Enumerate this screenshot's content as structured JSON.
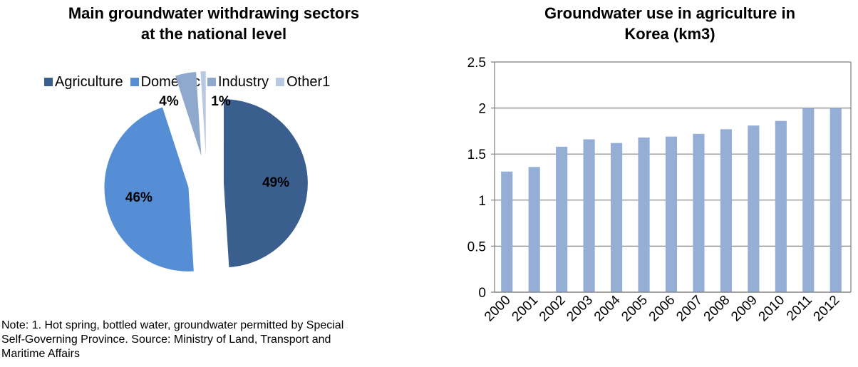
{
  "pie_title": [
    "Main groundwater withdrawing sectors",
    "at the national level"
  ],
  "bar_title": [
    "Groundwater use in agriculture in",
    "Korea (km3)"
  ],
  "note": [
    "Note: 1. Hot spring, bottled water, groundwater permitted by Special",
    "Self-Governing Province. Source: Ministry of Land, Transport and",
    "Maritime Affairs"
  ],
  "chart_data": [
    {
      "type": "pie",
      "title": "Main groundwater withdrawing sectors at the national level",
      "legend_position": "top",
      "slices": [
        {
          "name": "Agriculture",
          "value": 49,
          "label": "49%",
          "color": "#3A5F8F"
        },
        {
          "name": "Domestic",
          "value": 46,
          "label": "46%",
          "color": "#558ED5"
        },
        {
          "name": "Industry",
          "value": 4,
          "label": "4%",
          "color": "#8EA9CC"
        },
        {
          "name": "Other1",
          "value": 1,
          "label": "1%",
          "color": "#B9C9E2"
        }
      ]
    },
    {
      "type": "bar",
      "title": "Groundwater use in agriculture in Korea (km3)",
      "xlabel": "",
      "ylabel": "",
      "categories": [
        "2000",
        "2001",
        "2002",
        "2003",
        "2004",
        "2005",
        "2006",
        "2007",
        "2008",
        "2009",
        "2010",
        "2011",
        "2012"
      ],
      "values": [
        1.31,
        1.36,
        1.58,
        1.66,
        1.62,
        1.68,
        1.69,
        1.72,
        1.77,
        1.81,
        1.86,
        2.0,
        2.0
      ],
      "ylim": [
        0,
        2.5
      ],
      "yticks": [
        "0",
        "0.5",
        "1",
        "1.5",
        "2",
        "2.5"
      ],
      "grid": true,
      "bar_color": "#95AED6",
      "grid_color": "#808080"
    }
  ]
}
